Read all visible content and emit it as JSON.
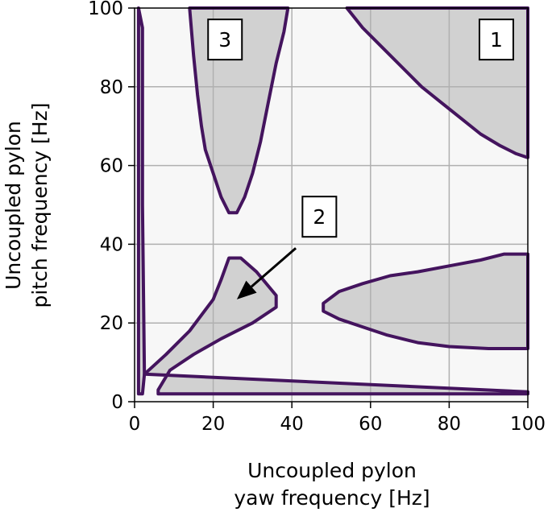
{
  "chart_data": {
    "type": "contour",
    "title": "",
    "xlabel": [
      "Uncoupled pylon",
      "yaw frequency [Hz]"
    ],
    "ylabel": [
      "Uncoupled pylon",
      "pitch frequency [Hz]"
    ],
    "xlim": [
      0,
      100
    ],
    "ylim": [
      0,
      100
    ],
    "x_ticks": [
      "0",
      "20",
      "40",
      "60",
      "80",
      "100"
    ],
    "y_ticks": [
      "0",
      "20",
      "40",
      "60",
      "80",
      "100"
    ],
    "grid": true,
    "colors": {
      "background": "#f7f7f7",
      "shaded_region": "#d1d1d1",
      "contour_line": "#44145e",
      "grid": "#b0b0b0"
    },
    "region_labels": [
      {
        "label": "1",
        "x": 92,
        "y": 92
      },
      {
        "label": "2",
        "x": 47,
        "y": 47
      },
      {
        "label": "3",
        "x": 23,
        "y": 92
      }
    ],
    "arrow": {
      "from": [
        41,
        39
      ],
      "to": [
        26,
        26
      ]
    },
    "regions": [
      {
        "name": "region-1",
        "points": [
          [
            54,
            100
          ],
          [
            58,
            95
          ],
          [
            63,
            90
          ],
          [
            68,
            85
          ],
          [
            73,
            80
          ],
          [
            78,
            76
          ],
          [
            83,
            72
          ],
          [
            88,
            68
          ],
          [
            93,
            65
          ],
          [
            97,
            63
          ],
          [
            100,
            62
          ],
          [
            100,
            100
          ]
        ]
      },
      {
        "name": "region-3",
        "points": [
          [
            14,
            100
          ],
          [
            15,
            88
          ],
          [
            16,
            78
          ],
          [
            17,
            70
          ],
          [
            18,
            64
          ],
          [
            20,
            58
          ],
          [
            22,
            52
          ],
          [
            24,
            48
          ],
          [
            26,
            48
          ],
          [
            28,
            52
          ],
          [
            30,
            58
          ],
          [
            32,
            66
          ],
          [
            34,
            76
          ],
          [
            36,
            86
          ],
          [
            38,
            94
          ],
          [
            39,
            100
          ]
        ]
      },
      {
        "name": "region-2",
        "points": [
          [
            2.5,
            7
          ],
          [
            8,
            12
          ],
          [
            14,
            18
          ],
          [
            20,
            26
          ],
          [
            22,
            31
          ],
          [
            24,
            36.5
          ],
          [
            27,
            36.5
          ],
          [
            31,
            33
          ],
          [
            36,
            27
          ],
          [
            36,
            24
          ],
          [
            30,
            20
          ],
          [
            22,
            16
          ],
          [
            15,
            12
          ],
          [
            9,
            8
          ],
          [
            6,
            3
          ],
          [
            6,
            2
          ],
          [
            100,
            2
          ],
          [
            100,
            2.5
          ]
        ]
      },
      {
        "name": "region-lower-right",
        "points": [
          [
            48,
            25
          ],
          [
            52,
            28
          ],
          [
            58,
            30
          ],
          [
            65,
            32
          ],
          [
            72,
            33
          ],
          [
            80,
            34.5
          ],
          [
            88,
            36
          ],
          [
            94,
            37.5
          ],
          [
            100,
            37.5
          ],
          [
            100,
            13.5
          ],
          [
            90,
            13.5
          ],
          [
            80,
            14
          ],
          [
            72,
            15
          ],
          [
            64,
            17
          ],
          [
            58,
            19
          ],
          [
            52,
            21
          ],
          [
            48,
            23
          ]
        ]
      },
      {
        "name": "region-left-strip",
        "points": [
          [
            1,
            100
          ],
          [
            2,
            95
          ],
          [
            2,
            50
          ],
          [
            2.5,
            7
          ],
          [
            2,
            2
          ],
          [
            1,
            2
          ]
        ]
      }
    ]
  }
}
